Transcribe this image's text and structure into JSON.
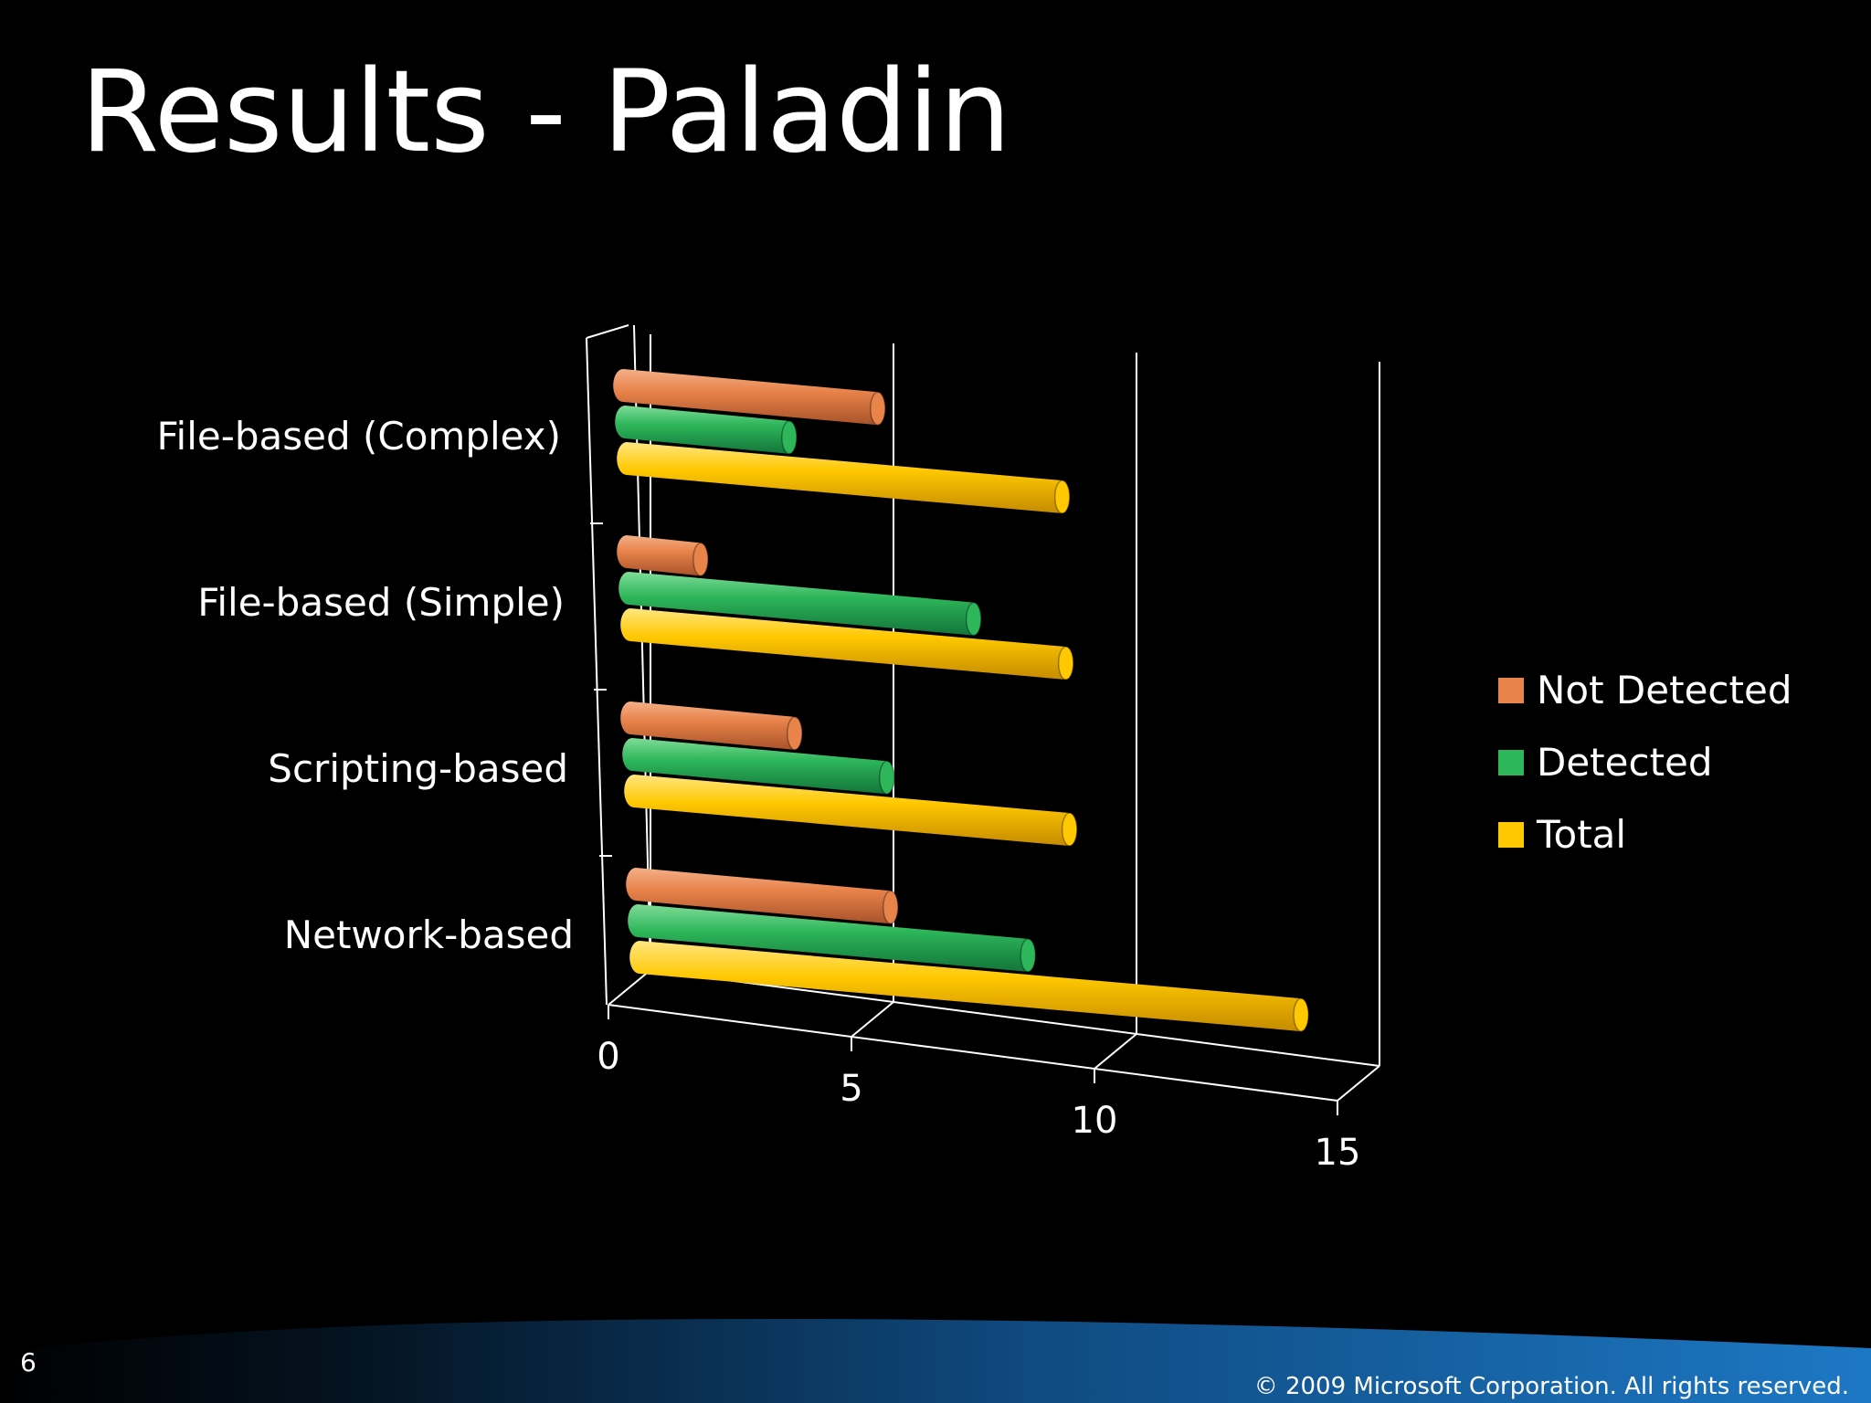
{
  "slide": {
    "title": "Results - Paladin",
    "number": "6",
    "copyright": "© 2009 Microsoft Corporation. All rights reserved."
  },
  "colors": {
    "background": "#000000",
    "not_detected": "#E8834A",
    "detected": "#2DB65A",
    "total": "#FFC800",
    "axis": "#FFFFFF",
    "footer_band": "#1B6FB8"
  },
  "chart_data": {
    "type": "bar",
    "orientation": "horizontal",
    "style": "3d-cylinder",
    "title": "",
    "xlabel": "",
    "ylabel": "",
    "categories": [
      "File-based (Complex)",
      "File-based (Simple)",
      "Scripting-based",
      "Network-based"
    ],
    "series": [
      {
        "name": "Not Detected",
        "color": "#E8834A",
        "values": [
          6,
          2,
          4,
          6
        ]
      },
      {
        "name": "Detected",
        "color": "#2DB65A",
        "values": [
          4,
          8,
          6,
          9
        ]
      },
      {
        "name": "Total",
        "color": "#FFC800",
        "values": [
          10,
          10,
          10,
          15
        ]
      }
    ],
    "x_ticks": [
      "0",
      "5",
      "10",
      "15"
    ],
    "xlim": [
      0,
      15
    ],
    "grid": true,
    "legend_position": "right"
  }
}
